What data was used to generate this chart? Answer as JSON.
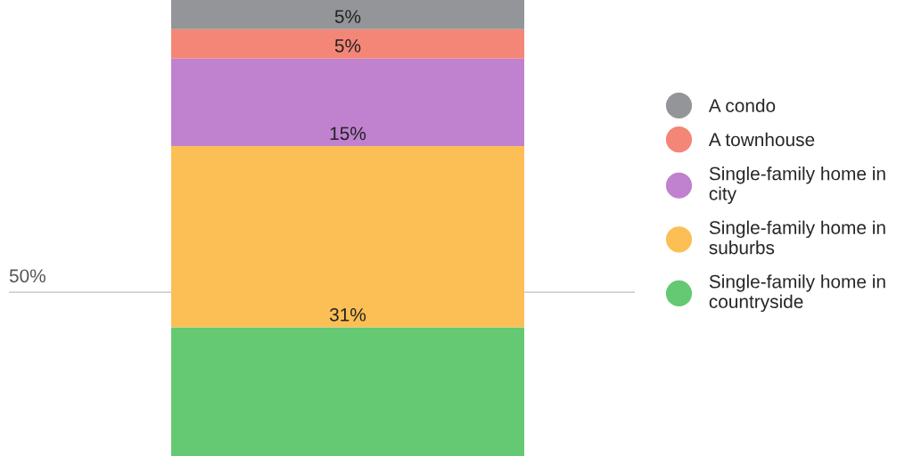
{
  "chart_data": {
    "type": "bar",
    "stacked": true,
    "categories": [
      null
    ],
    "series": [
      {
        "name": "Single-family home in countryside",
        "color": "#64c972",
        "values": [
          44
        ],
        "value_labels": [
          null
        ]
      },
      {
        "name": "Single-family home in suburbs",
        "color": "#fcbf55",
        "values": [
          31
        ],
        "value_labels": [
          "31%"
        ]
      },
      {
        "name": "Single-family home in city",
        "color": "#c081cf",
        "values": [
          15
        ],
        "value_labels": [
          "15%"
        ]
      },
      {
        "name": "A townhouse",
        "color": "#f48677",
        "values": [
          5
        ],
        "value_labels": [
          "5%"
        ]
      },
      {
        "name": "A condo",
        "color": "#939598",
        "values": [
          5
        ],
        "value_labels": [
          "5%"
        ]
      }
    ],
    "ref_lines": [
      {
        "axis": "y",
        "value": 50,
        "label": "50%",
        "color": "#d0d0d0"
      }
    ],
    "legend": "right",
    "grid": false
  }
}
